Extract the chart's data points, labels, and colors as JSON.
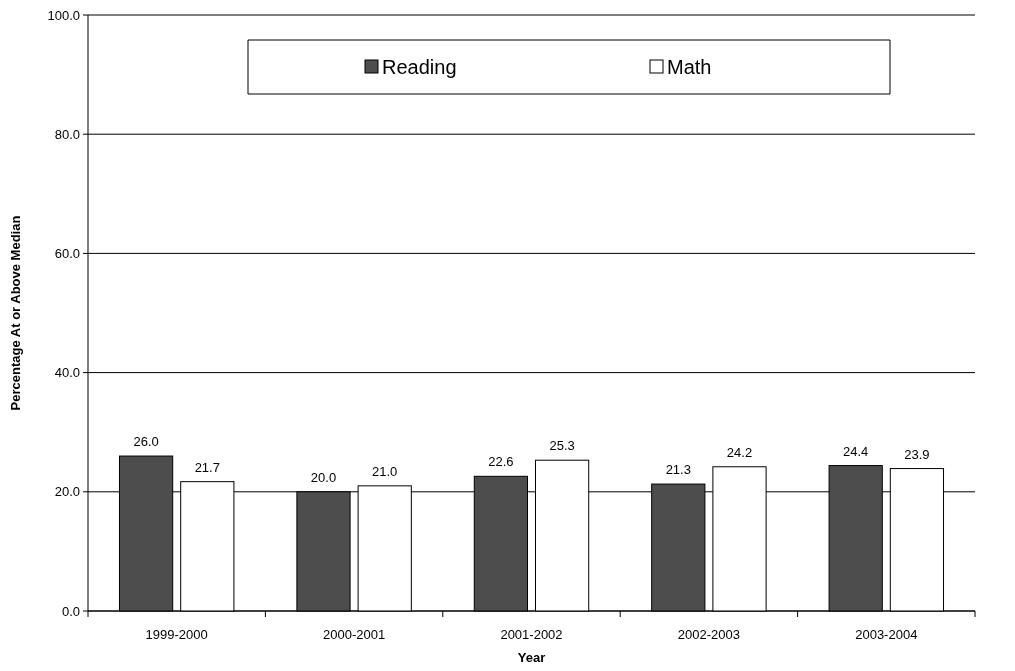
{
  "chart_data": {
    "type": "bar",
    "xlabel": "Year",
    "ylabel": "Percentage At or Above Median",
    "categories": [
      "1999-2000",
      "2000-2001",
      "2001-2002",
      "2002-2003",
      "2003-2004"
    ],
    "series": [
      {
        "name": "Reading",
        "color": "#4d4d4d",
        "values": [
          26.0,
          20.0,
          22.6,
          21.3,
          24.4
        ],
        "value_labels": [
          "26.0",
          "20.0",
          "22.6",
          "21.3",
          "24.4"
        ]
      },
      {
        "name": "Math",
        "color": "#ffffff",
        "values": [
          21.7,
          21.0,
          25.3,
          24.2,
          23.9
        ],
        "value_labels": [
          "21.7",
          "21.0",
          "25.3",
          "24.2",
          "23.9"
        ]
      }
    ],
    "ylim": [
      0,
      100
    ],
    "yticks": [
      {
        "value": 0,
        "label": "0.0"
      },
      {
        "value": 20,
        "label": "20.0"
      },
      {
        "value": 40,
        "label": "40.0"
      },
      {
        "value": 60,
        "label": "60.0"
      },
      {
        "value": 80,
        "label": "80.0"
      },
      {
        "value": 100,
        "label": "100.0"
      }
    ],
    "grid": "y",
    "legend": "top"
  }
}
